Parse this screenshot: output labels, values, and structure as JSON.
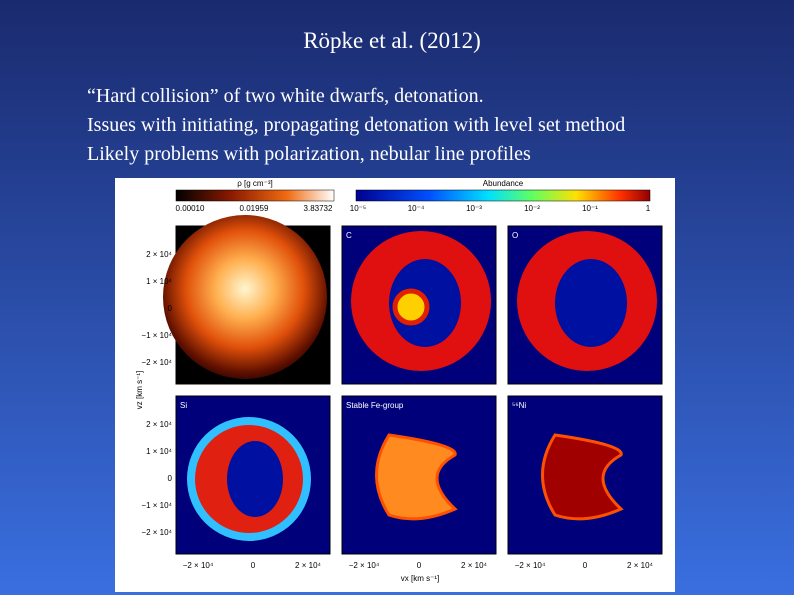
{
  "title": "Röpke et al. (2012)",
  "lines": [
    "“Hard collision” of two white dwarfs, detonation.",
    "Issues with initiating, propagating detonation with level set method",
    "Likely problems with polarization, nebular line profiles"
  ],
  "figure": {
    "density_colorbar": {
      "label": "ρ [g cm⁻³]",
      "ticks": [
        "0.00010",
        "0.01959",
        "3.83732"
      ]
    },
    "abundance_colorbar": {
      "label": "Abundance",
      "ticks": [
        "10⁻⁵",
        "10⁻⁴",
        "10⁻³",
        "10⁻²",
        "10⁻¹",
        "1"
      ]
    },
    "panel_labels": [
      "C",
      "O",
      "Si",
      "Stable Fe-group",
      "⁵⁶Ni"
    ],
    "y_axis_label": "vz [km s⁻¹]",
    "x_axis_label": "vx [km s⁻¹]",
    "y_ticks": [
      "2 × 10⁴",
      "1 × 10⁴",
      "0",
      "−1 × 10⁴",
      "−2 × 10⁴"
    ],
    "x_ticks": [
      "−2 × 10⁴",
      "0",
      "2 × 10⁴"
    ]
  }
}
